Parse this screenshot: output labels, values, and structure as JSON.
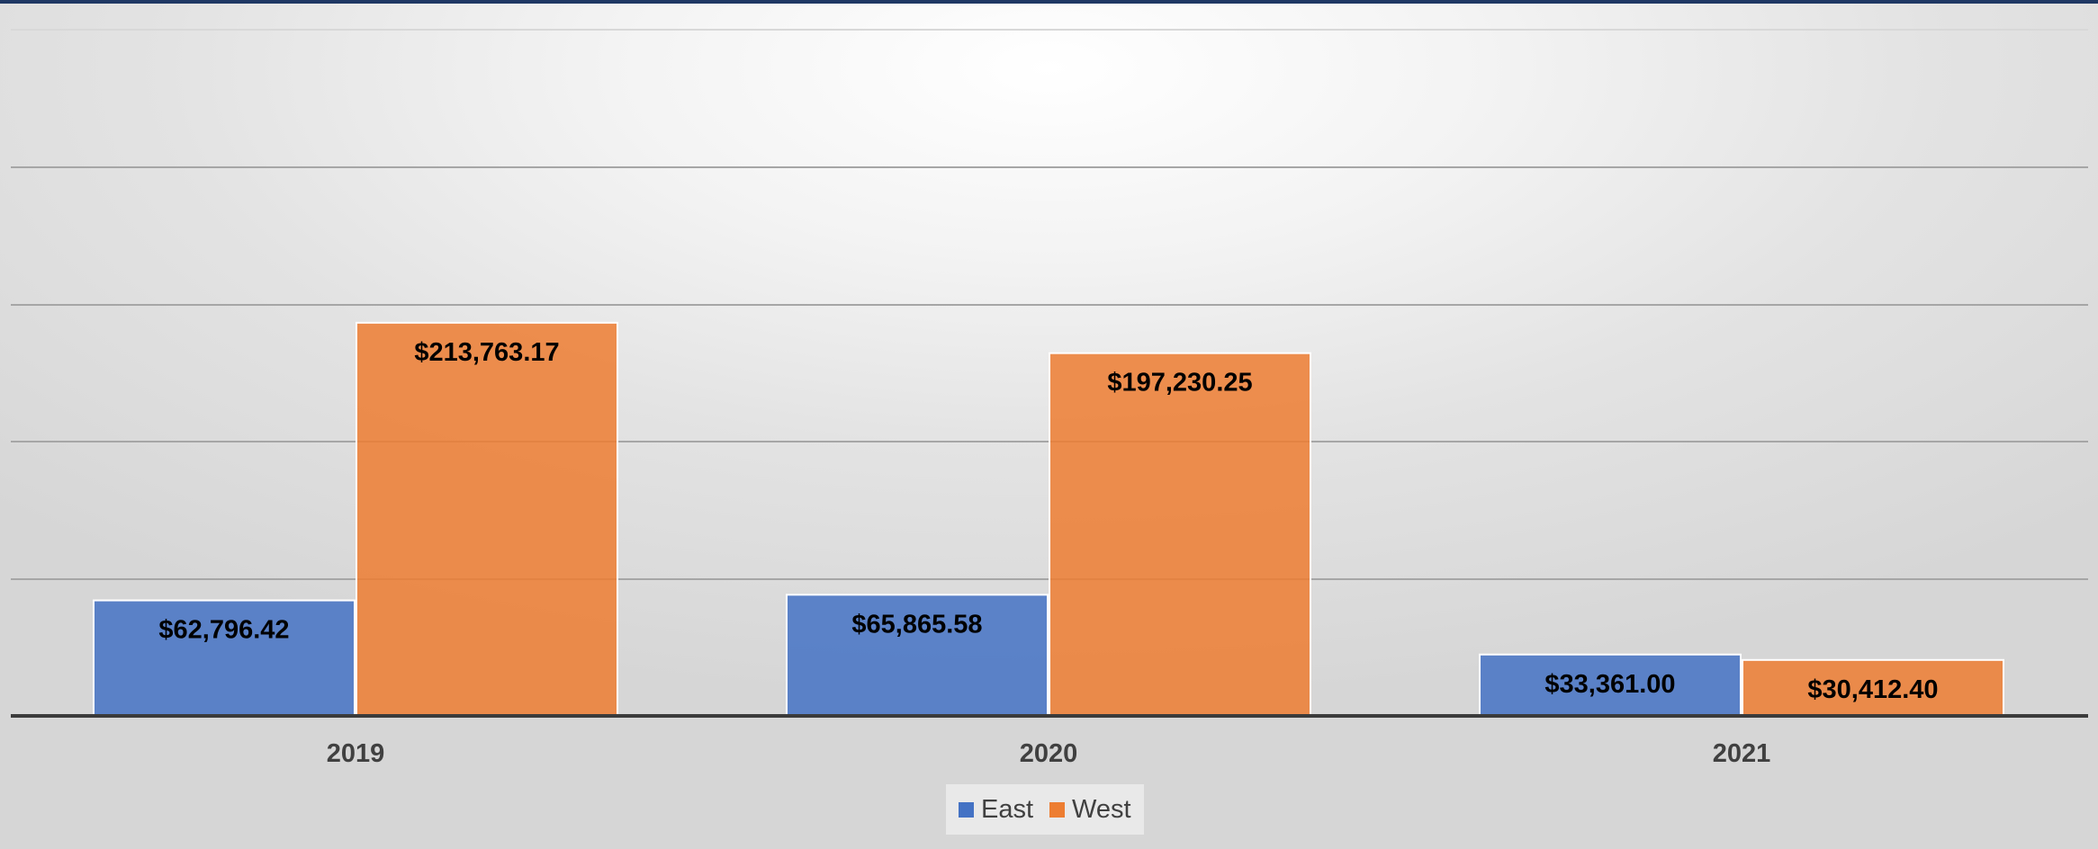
{
  "chart_data": {
    "type": "bar",
    "categories": [
      "2019",
      "2020",
      "2021"
    ],
    "series": [
      {
        "name": "East",
        "color": "#4472c4",
        "values": [
          62796.42,
          65865.58,
          33361.0
        ],
        "labels": [
          "$62,796.42",
          "$65,865.58",
          "$33,361.00"
        ]
      },
      {
        "name": "West",
        "color": "#ed7d31",
        "values": [
          213763.17,
          197230.25,
          30412.4
        ],
        "labels": [
          "$213,763.17",
          "$197,230.25",
          "$30,412.40"
        ]
      }
    ],
    "ylim": [
      0,
      250000
    ],
    "gridlines": true,
    "gridline_values": [
      0,
      50000,
      100000,
      150000,
      200000,
      250000
    ],
    "legend_position": "bottom",
    "title": "",
    "xlabel": "",
    "ylabel": ""
  },
  "legend": {
    "east_label": "East",
    "west_label": "West"
  }
}
